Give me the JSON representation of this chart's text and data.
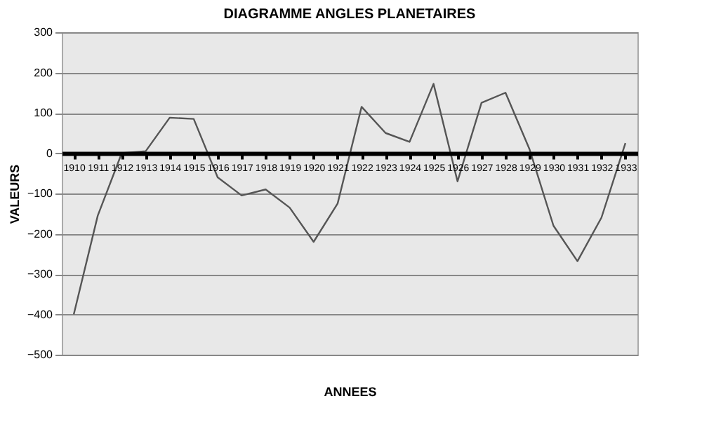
{
  "chart_data": {
    "type": "line",
    "title": "DIAGRAMME ANGLES PLANETAIRES",
    "xlabel": "ANNEES",
    "ylabel": "VALEURS",
    "categories": [
      "1910",
      "1911",
      "1912",
      "1913",
      "1914",
      "1915",
      "1916",
      "1917",
      "1918",
      "1919",
      "1920",
      "1921",
      "1922",
      "1923",
      "1924",
      "1925",
      "1926",
      "1927",
      "1928",
      "1929",
      "1930",
      "1931",
      "1932",
      "1933"
    ],
    "series": [
      {
        "color": "#555555",
        "values": [
          -400,
          -155,
          0,
          5,
          88,
          85,
          -60,
          -105,
          -90,
          -135,
          -220,
          -125,
          115,
          50,
          28,
          172,
          -70,
          125,
          150,
          10,
          -180,
          -268,
          -160,
          25
        ]
      }
    ],
    "ylim": [
      -500,
      300
    ],
    "yticks": [
      -500,
      -400,
      -300,
      -200,
      -100,
      0,
      100,
      200,
      300
    ],
    "grid": "y",
    "marker": "none",
    "line_style": "solid"
  }
}
